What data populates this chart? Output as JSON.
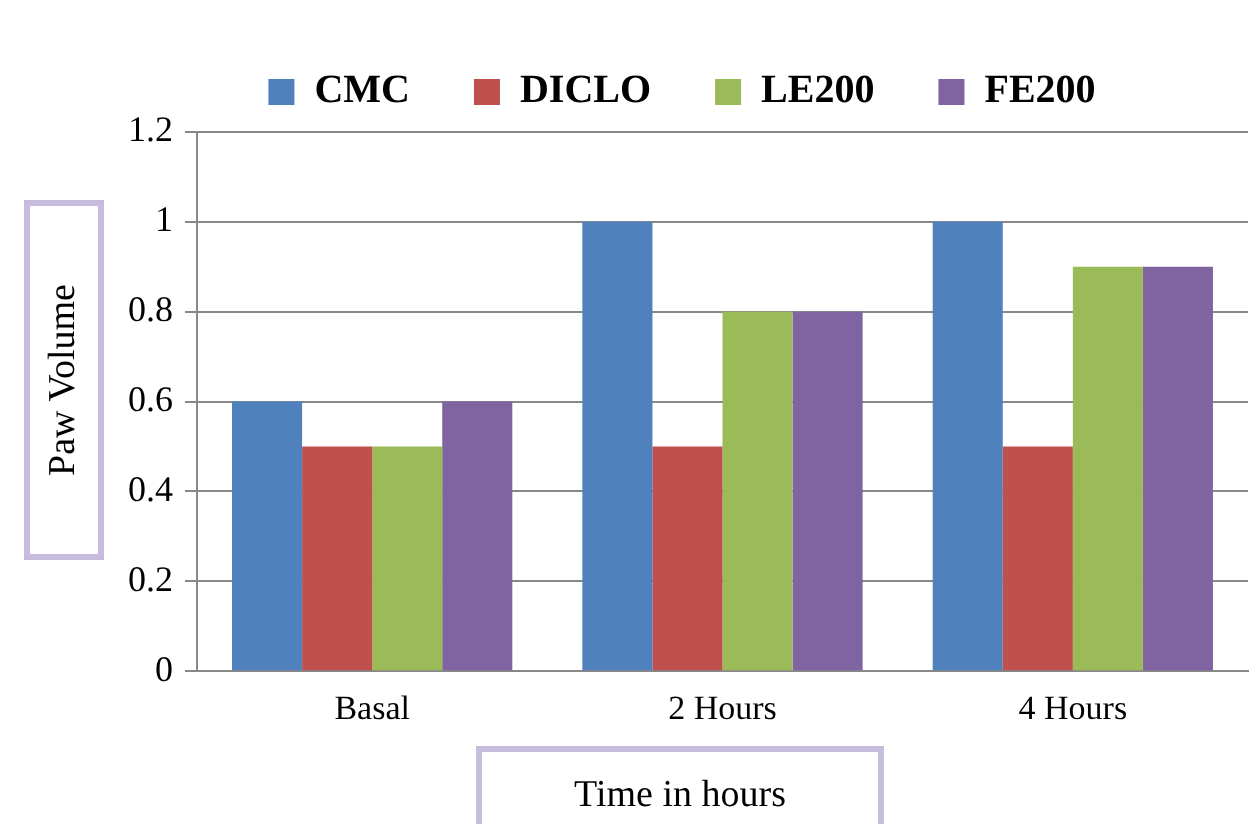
{
  "chart_data": {
    "type": "bar",
    "xlabel": "Time in hours",
    "ylabel": "Paw Volume",
    "categories": [
      "Basal",
      "2 Hours",
      "4 Hours"
    ],
    "series": [
      {
        "name": "CMC",
        "color": "#4f81bd",
        "values": [
          0.6,
          1,
          1
        ]
      },
      {
        "name": "DICLO",
        "color": "#c0504d",
        "values": [
          0.5,
          0.5,
          0.5
        ]
      },
      {
        "name": "LE200",
        "color": "#9bbb59",
        "values": [
          0.5,
          0.8,
          0.9
        ]
      },
      {
        "name": "FE200",
        "color": "#8064a2",
        "values": [
          0.6,
          0.8,
          0.9
        ]
      }
    ],
    "ylim": [
      0,
      1.2
    ],
    "yticks": [
      0,
      0.2,
      0.4,
      0.6,
      0.8,
      1,
      1.2
    ],
    "grid": "y",
    "legend": "top"
  }
}
